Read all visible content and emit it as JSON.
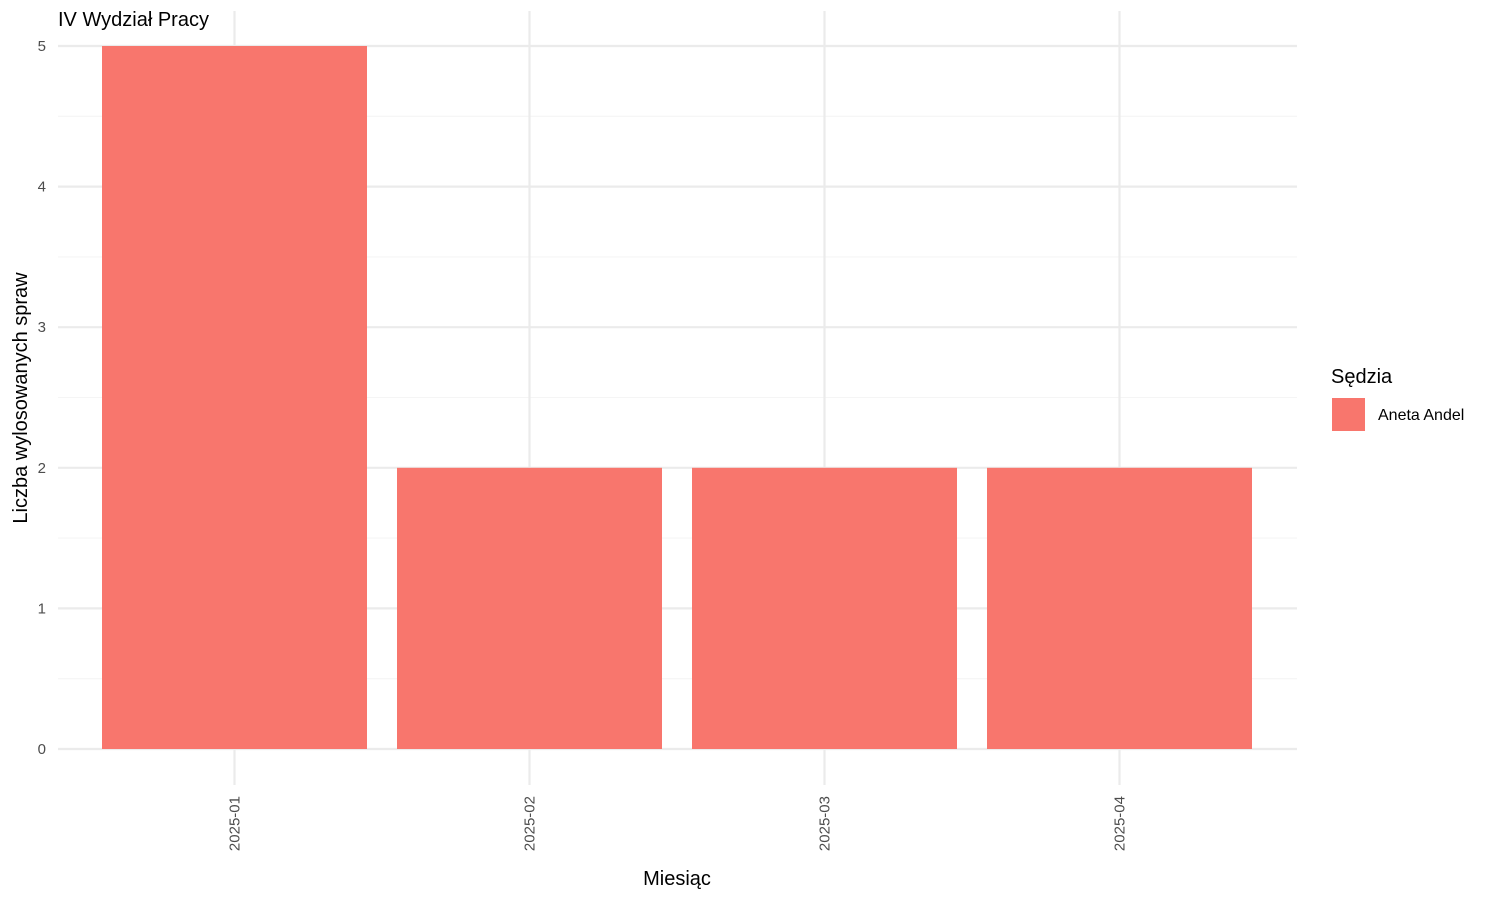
{
  "chart_data": {
    "type": "bar",
    "title": "IV Wydział Pracy",
    "xlabel": "Miesiąc",
    "ylabel": "Liczba wylosowanych spraw",
    "categories": [
      "2025-01",
      "2025-02",
      "2025-03",
      "2025-04"
    ],
    "series": [
      {
        "name": "Aneta Andel",
        "values": [
          5,
          2,
          2,
          2
        ]
      }
    ],
    "ylim": [
      0,
      5
    ],
    "yticks": [
      0,
      1,
      2,
      3,
      4,
      5
    ],
    "grid": true,
    "legend": {
      "title": "Sędzia",
      "position": "right"
    },
    "colors": {
      "bar": "#F8766D",
      "grid": "#EBEBEB",
      "tick_text": "#4D4D4D"
    }
  }
}
